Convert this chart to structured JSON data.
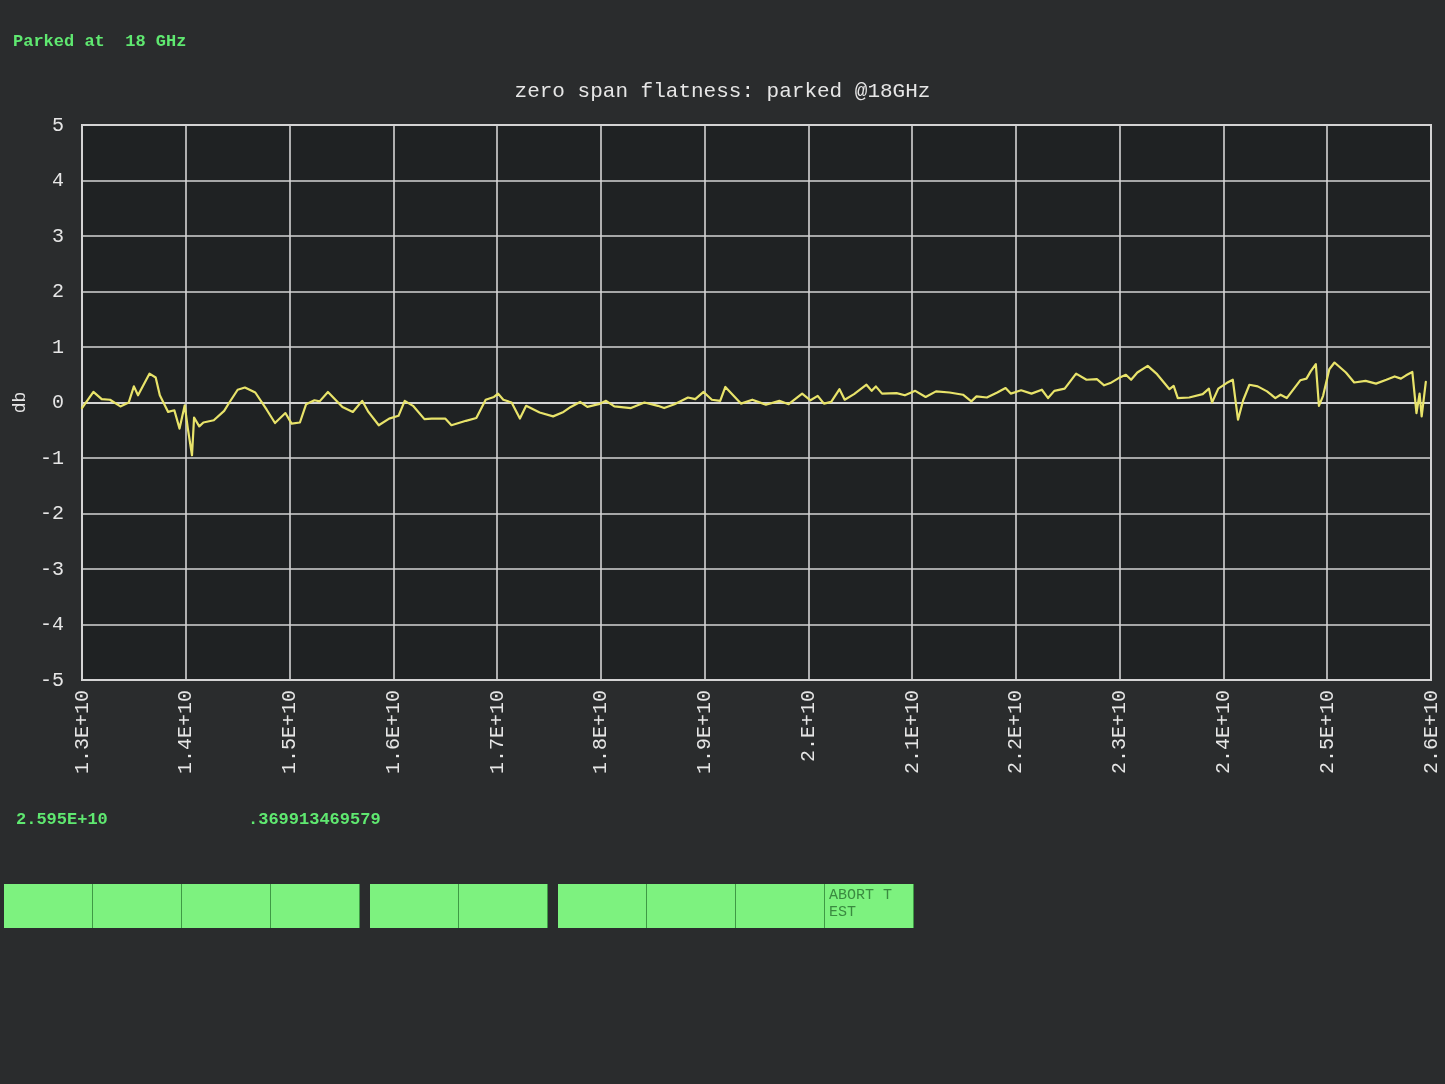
{
  "chart_data": {
    "type": "line",
    "title": "zero span flatness: parked @18GHz",
    "subtitle": "Parked at  18 GHz",
    "ylabel": "db",
    "x": [
      13000000000.0,
      13110000000.0,
      13190000000.0,
      13270000000.0,
      13370000000.0,
      13450000000.0,
      13500000000.0,
      13540000000.0,
      13650000000.0,
      13710000000.0,
      13750000000.0,
      13830000000.0,
      13890000000.0,
      13940000000.0,
      13990000000.0,
      14020000000.0,
      14060000000.0,
      14080000000.0,
      14130000000.0,
      14170000000.0,
      14270000000.0,
      14370000000.0,
      14420000000.0,
      14500000000.0,
      14570000000.0,
      14670000000.0,
      14780000000.0,
      14860000000.0,
      14960000000.0,
      15020000000.0,
      15100000000.0,
      15160000000.0,
      15240000000.0,
      15290000000.0,
      15370000000.0,
      15510000000.0,
      15610000000.0,
      15700000000.0,
      15760000000.0,
      15860000000.0,
      15960000000.0,
      16050000000.0,
      16110000000.0,
      16190000000.0,
      16300000000.0,
      16370000000.0,
      16500000000.0,
      16560000000.0,
      16700000000.0,
      16800000000.0,
      16890000000.0,
      16970000000.0,
      17010000000.0,
      17060000000.0,
      17140000000.0,
      17220000000.0,
      17280000000.0,
      17410000000.0,
      17540000000.0,
      17640000000.0,
      17710000000.0,
      17800000000.0,
      17870000000.0,
      17980000000.0,
      18050000000.0,
      18130000000.0,
      18290000000.0,
      18420000000.0,
      18550000000.0,
      18610000000.0,
      18710000000.0,
      18840000000.0,
      18910000000.0,
      18990000000.0,
      19070000000.0,
      19150000000.0,
      19200000000.0,
      19270000000.0,
      19350000000.0,
      19460000000.0,
      19590000000.0,
      19720000000.0,
      19810000000.0,
      19940000000.0,
      20020000000.0,
      20090000000.0,
      20150000000.0,
      20220000000.0,
      20300000000.0,
      20350000000.0,
      20440000000.0,
      20560000000.0,
      20610000000.0,
      20650000000.0,
      20710000000.0,
      20850000000.0,
      20930000000.0,
      21030000000.0,
      21130000000.0,
      21230000000.0,
      21360000000.0,
      21490000000.0,
      21570000000.0,
      21620000000.0,
      21720000000.0,
      21820000000.0,
      21900000000.0,
      21950000000.0,
      22050000000.0,
      22150000000.0,
      22250000000.0,
      22310000000.0,
      22370000000.0,
      22470000000.0,
      22580000000.0,
      22680000000.0,
      22780000000.0,
      22850000000.0,
      22910000000.0,
      22990000000.0,
      23060000000.0,
      23110000000.0,
      23170000000.0,
      23270000000.0,
      23360000000.0,
      23440000000.0,
      23480000000.0,
      23520000000.0,
      23560000000.0,
      23670000000.0,
      23800000000.0,
      23860000000.0,
      23890000000.0,
      23950000000.0,
      24030000000.0,
      24090000000.0,
      24140000000.0,
      24190000000.0,
      24250000000.0,
      24330000000.0,
      24420000000.0,
      24500000000.0,
      24550000000.0,
      24610000000.0,
      24740000000.0,
      24800000000.0,
      24840000000.0,
      24890000000.0,
      24920000000.0,
      24960000000.0,
      25020000000.0,
      25070000000.0,
      25180000000.0,
      25260000000.0,
      25370000000.0,
      25470000000.0,
      25570000000.0,
      25650000000.0,
      25710000000.0,
      25760000000.0,
      25820000000.0,
      25860000000.0,
      25890000000.0,
      25910000000.0,
      25950000000.0
    ],
    "values": [
      -0.1,
      0.19,
      0.06,
      0.05,
      -0.07,
      0.0,
      0.29,
      0.13,
      0.52,
      0.45,
      0.13,
      -0.17,
      -0.14,
      -0.47,
      -0.05,
      -0.47,
      -0.95,
      -0.27,
      -0.43,
      -0.36,
      -0.32,
      -0.15,
      0.0,
      0.23,
      0.27,
      0.18,
      -0.13,
      -0.37,
      -0.19,
      -0.38,
      -0.36,
      -0.03,
      0.04,
      0.02,
      0.19,
      -0.08,
      -0.17,
      0.03,
      -0.17,
      -0.41,
      -0.29,
      -0.24,
      0.03,
      -0.06,
      -0.3,
      -0.29,
      -0.29,
      -0.41,
      -0.33,
      -0.28,
      0.05,
      0.1,
      0.16,
      0.05,
      0.0,
      -0.29,
      -0.06,
      -0.18,
      -0.25,
      -0.17,
      -0.08,
      0.01,
      -0.08,
      -0.03,
      0.03,
      -0.07,
      -0.1,
      0.0,
      -0.06,
      -0.1,
      -0.03,
      0.09,
      0.06,
      0.19,
      0.05,
      0.03,
      0.28,
      0.14,
      -0.02,
      0.05,
      -0.04,
      0.03,
      -0.03,
      0.16,
      0.04,
      0.12,
      -0.02,
      0.01,
      0.24,
      0.05,
      0.15,
      0.32,
      0.21,
      0.29,
      0.16,
      0.17,
      0.13,
      0.21,
      0.1,
      0.2,
      0.18,
      0.14,
      0.02,
      0.11,
      0.09,
      0.18,
      0.26,
      0.16,
      0.22,
      0.16,
      0.23,
      0.08,
      0.21,
      0.25,
      0.52,
      0.41,
      0.42,
      0.31,
      0.35,
      0.44,
      0.5,
      0.41,
      0.54,
      0.66,
      0.51,
      0.33,
      0.24,
      0.3,
      0.08,
      0.09,
      0.15,
      0.25,
      0.0,
      0.25,
      0.35,
      0.41,
      -0.31,
      0.04,
      0.32,
      0.29,
      0.2,
      0.08,
      0.14,
      0.08,
      0.4,
      0.43,
      0.56,
      0.69,
      -0.06,
      0.12,
      0.6,
      0.72,
      0.54,
      0.36,
      0.39,
      0.34,
      0.41,
      0.47,
      0.43,
      0.49,
      0.55,
      -0.19,
      0.16,
      -0.25,
      0.37
    ],
    "color": "#e8e36a",
    "xlim": [
      13000000000.0,
      26000000000.0
    ],
    "xticks": [
      {
        "value": 13000000000.0,
        "label": "1.3E+10"
      },
      {
        "value": 14000000000.0,
        "label": "1.4E+10"
      },
      {
        "value": 15000000000.0,
        "label": "1.5E+10"
      },
      {
        "value": 16000000000.0,
        "label": "1.6E+10"
      },
      {
        "value": 17000000000.0,
        "label": "1.7E+10"
      },
      {
        "value": 18000000000.0,
        "label": "1.8E+10"
      },
      {
        "value": 19000000000.0,
        "label": "1.9E+10"
      },
      {
        "value": 20000000000.0,
        "label": "2.E+10"
      },
      {
        "value": 21000000000.0,
        "label": "2.1E+10"
      },
      {
        "value": 22000000000.0,
        "label": "2.2E+10"
      },
      {
        "value": 23000000000.0,
        "label": "2.3E+10"
      },
      {
        "value": 24000000000.0,
        "label": "2.4E+10"
      },
      {
        "value": 25000000000.0,
        "label": "2.5E+10"
      },
      {
        "value": 26000000000.0,
        "label": "2.6E+10"
      }
    ],
    "ylim": [
      -5,
      5
    ],
    "yticks": [
      -5,
      -4,
      -3,
      -2,
      -1,
      0,
      1,
      2,
      3,
      4,
      5
    ],
    "grid": true,
    "marker": "none",
    "line_style": "solid",
    "annotations": [
      "2.595E+10",
      ".369913469579",
      "ABORT TEST"
    ]
  }
}
